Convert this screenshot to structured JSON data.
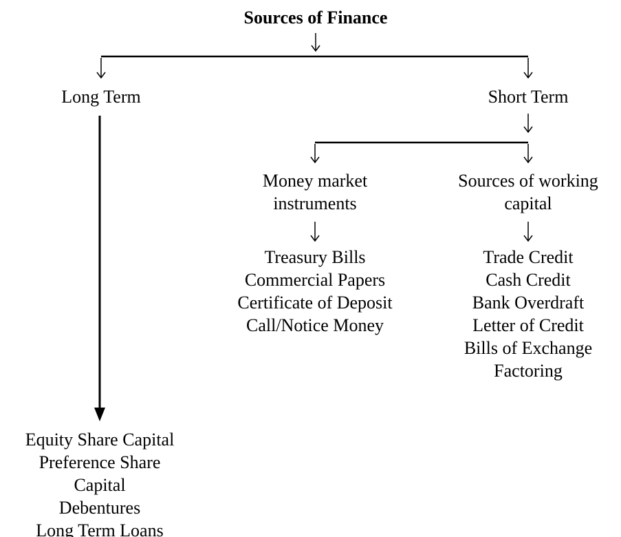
{
  "title": "Sources of Finance",
  "long_term": {
    "label": "Long Term",
    "items": [
      "Equity Share Capital",
      "Preference Share",
      "Capital",
      "Debentures",
      "Long Term Loans"
    ]
  },
  "short_term": {
    "label": "Short Term",
    "branches": [
      {
        "label": [
          "Money market",
          "instruments"
        ],
        "items": [
          "Treasury Bills",
          "Commercial Papers",
          "Certificate of Deposit",
          "Call/Notice Money"
        ]
      },
      {
        "label": [
          "Sources of working",
          "capital"
        ],
        "items": [
          "Trade Credit",
          "Cash Credit",
          "Bank Overdraft",
          "Letter of Credit",
          "Bills of Exchange",
          "Factoring"
        ]
      }
    ]
  }
}
